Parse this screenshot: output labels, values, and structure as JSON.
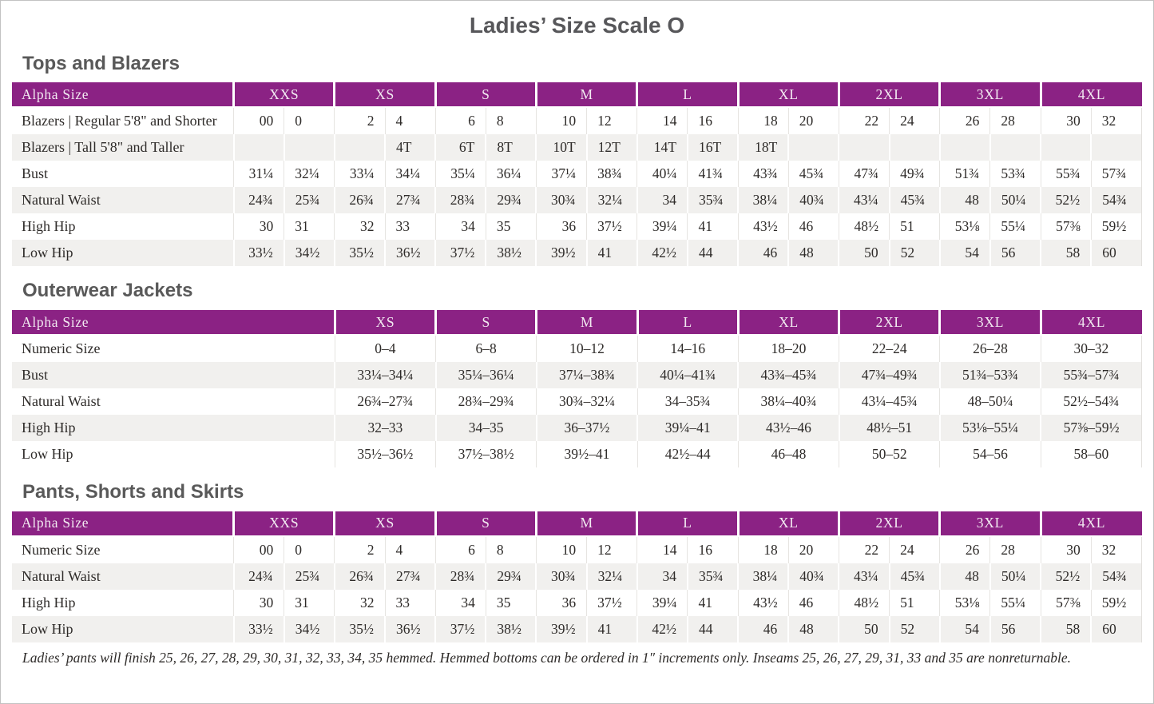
{
  "page": {
    "title": "Ladies’ Size Scale O",
    "footnote": "Ladies’ pants will finish 25, 26, 27, 28, 29, 30, 31, 32, 33, 34, 35 hemmed. Hemmed bottoms can be ordered in 1″ increments only. Inseams 25, 26, 27, 29, 31, 33 and 35 are nonreturnable."
  },
  "colors": {
    "header_purple": "#8b2284",
    "header_text": "#f2eaf1",
    "stripe_gray": "#f1f0ee",
    "heading_gray": "#595959",
    "body_text": "#2e2b29"
  },
  "tables": [
    {
      "id": "tops-and-blazers",
      "section_title": "Tops and Blazers",
      "header_label": "Alpha Size",
      "paired": true,
      "sizes": [
        "XXS",
        "XS",
        "S",
        "M",
        "L",
        "XL",
        "2XL",
        "3XL",
        "4XL"
      ],
      "rows": [
        {
          "label": "Blazers | Regular 5'8\" and Shorter",
          "values": [
            "00",
            "0",
            "2",
            "4",
            "6",
            "8",
            "10",
            "12",
            "14",
            "16",
            "18",
            "20",
            "22",
            "24",
            "26",
            "28",
            "30",
            "32"
          ]
        },
        {
          "label": "Blazers | Tall 5'8\" and Taller",
          "values": [
            "",
            "",
            "",
            "4T",
            "6T",
            "8T",
            "10T",
            "12T",
            "14T",
            "16T",
            "18T",
            "",
            "",
            "",
            "",
            "",
            "",
            ""
          ]
        },
        {
          "label": "Bust",
          "values": [
            "31¼",
            "32¼",
            "33¼",
            "34¼",
            "35¼",
            "36¼",
            "37¼",
            "38¾",
            "40¼",
            "41¾",
            "43¾",
            "45¾",
            "47¾",
            "49¾",
            "51¾",
            "53¾",
            "55¾",
            "57¾"
          ]
        },
        {
          "label": "Natural Waist",
          "values": [
            "24¾",
            "25¾",
            "26¾",
            "27¾",
            "28¾",
            "29¾",
            "30¾",
            "32¼",
            "34",
            "35¾",
            "38¼",
            "40¾",
            "43¼",
            "45¾",
            "48",
            "50¼",
            "52½",
            "54¾"
          ]
        },
        {
          "label": "High Hip",
          "values": [
            "30",
            "31",
            "32",
            "33",
            "34",
            "35",
            "36",
            "37½",
            "39¼",
            "41",
            "43½",
            "46",
            "48½",
            "51",
            "53⅛",
            "55¼",
            "57⅜",
            "59½"
          ]
        },
        {
          "label": "Low Hip",
          "values": [
            "33½",
            "34½",
            "35½",
            "36½",
            "37½",
            "38½",
            "39½",
            "41",
            "42½",
            "44",
            "46",
            "48",
            "50",
            "52",
            "54",
            "56",
            "58",
            "60"
          ]
        }
      ]
    },
    {
      "id": "outerwear-jackets",
      "section_title": "Outerwear Jackets",
      "header_label": "Alpha Size",
      "paired": false,
      "sizes": [
        "XS",
        "S",
        "M",
        "L",
        "XL",
        "2XL",
        "3XL",
        "4XL"
      ],
      "rows": [
        {
          "label": "Numeric Size",
          "values": [
            "0–4",
            "6–8",
            "10–12",
            "14–16",
            "18–20",
            "22–24",
            "26–28",
            "30–32"
          ]
        },
        {
          "label": "Bust",
          "values": [
            "33¼–34¼",
            "35¼–36¼",
            "37¼–38¾",
            "40¼–41¾",
            "43¾–45¾",
            "47¾–49¾",
            "51¾–53¾",
            "55¾–57¾"
          ]
        },
        {
          "label": "Natural Waist",
          "values": [
            "26¾–27¾",
            "28¾–29¾",
            "30¾–32¼",
            "34–35¾",
            "38¼–40¾",
            "43¼–45¾",
            "48–50¼",
            "52½–54¾"
          ]
        },
        {
          "label": "High Hip",
          "values": [
            "32–33",
            "34–35",
            "36–37½",
            "39¼–41",
            "43½–46",
            "48½–51",
            "53⅛–55¼",
            "57⅜–59½"
          ]
        },
        {
          "label": "Low Hip",
          "values": [
            "35½–36½",
            "37½–38½",
            "39½–41",
            "42½–44",
            "46–48",
            "50–52",
            "54–56",
            "58–60"
          ]
        }
      ]
    },
    {
      "id": "pants-shorts-and-skirts",
      "section_title": "Pants, Shorts and Skirts",
      "header_label": "Alpha Size",
      "paired": true,
      "sizes": [
        "XXS",
        "XS",
        "S",
        "M",
        "L",
        "XL",
        "2XL",
        "3XL",
        "4XL"
      ],
      "rows": [
        {
          "label": "Numeric Size",
          "values": [
            "00",
            "0",
            "2",
            "4",
            "6",
            "8",
            "10",
            "12",
            "14",
            "16",
            "18",
            "20",
            "22",
            "24",
            "26",
            "28",
            "30",
            "32"
          ]
        },
        {
          "label": "Natural Waist",
          "values": [
            "24¾",
            "25¾",
            "26¾",
            "27¾",
            "28¾",
            "29¾",
            "30¾",
            "32¼",
            "34",
            "35¾",
            "38¼",
            "40¾",
            "43¼",
            "45¾",
            "48",
            "50¼",
            "52½",
            "54¾"
          ]
        },
        {
          "label": "High Hip",
          "values": [
            "30",
            "31",
            "32",
            "33",
            "34",
            "35",
            "36",
            "37½",
            "39¼",
            "41",
            "43½",
            "46",
            "48½",
            "51",
            "53⅛",
            "55¼",
            "57⅜",
            "59½"
          ]
        },
        {
          "label": "Low Hip",
          "values": [
            "33½",
            "34½",
            "35½",
            "36½",
            "37½",
            "38½",
            "39½",
            "41",
            "42½",
            "44",
            "46",
            "48",
            "50",
            "52",
            "54",
            "56",
            "58",
            "60"
          ]
        }
      ]
    }
  ]
}
